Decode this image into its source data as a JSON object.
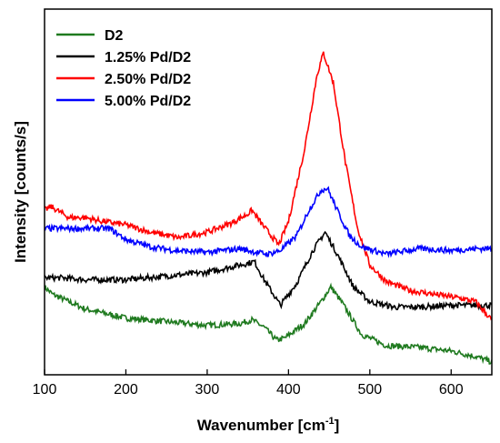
{
  "chart_data": {
    "type": "line",
    "xlabel": "Wavenumber [cm",
    "xlabel_sup": "-1",
    "xlabel_suffix": "]",
    "ylabel": "Intensity [counts/s]",
    "xlim": [
      100,
      650
    ],
    "ylim": [
      0,
      100
    ],
    "x_ticks": [
      100,
      200,
      300,
      400,
      500,
      600
    ],
    "x_tick_labels": [
      "100",
      "200",
      "300",
      "400",
      "500",
      "600"
    ],
    "y_tick_labels_shown": false,
    "legend_position": "top-left",
    "series": [
      {
        "name": "D2",
        "color": "#1f7a1f",
        "points": [
          [
            100,
            24
          ],
          [
            110,
            22
          ],
          [
            130,
            20
          ],
          [
            150,
            18
          ],
          [
            170,
            17
          ],
          [
            200,
            15.5
          ],
          [
            250,
            14.5
          ],
          [
            300,
            13.5
          ],
          [
            340,
            14
          ],
          [
            355,
            15
          ],
          [
            370,
            13
          ],
          [
            385,
            9.5
          ],
          [
            395,
            10
          ],
          [
            420,
            14
          ],
          [
            440,
            20
          ],
          [
            452,
            24
          ],
          [
            465,
            20
          ],
          [
            490,
            11
          ],
          [
            520,
            8
          ],
          [
            560,
            7.5
          ],
          [
            600,
            6.5
          ],
          [
            630,
            5
          ],
          [
            650,
            3.5
          ]
        ]
      },
      {
        "name": "1.25% Pd/D2",
        "color": "#000000",
        "points": [
          [
            100,
            26.5
          ],
          [
            120,
            26.5
          ],
          [
            150,
            26
          ],
          [
            200,
            26
          ],
          [
            250,
            27
          ],
          [
            300,
            28
          ],
          [
            330,
            29.5
          ],
          [
            350,
            30.5
          ],
          [
            358,
            31
          ],
          [
            370,
            26
          ],
          [
            390,
            19
          ],
          [
            410,
            25
          ],
          [
            430,
            34
          ],
          [
            445,
            39
          ],
          [
            460,
            33
          ],
          [
            480,
            24
          ],
          [
            500,
            20
          ],
          [
            530,
            18.5
          ],
          [
            560,
            18.5
          ],
          [
            600,
            19
          ],
          [
            630,
            19
          ],
          [
            650,
            19
          ]
        ]
      },
      {
        "name": "2.50% Pd/D2",
        "color": "#ff0000",
        "points": [
          [
            100,
            45
          ],
          [
            108,
            46
          ],
          [
            130,
            43
          ],
          [
            150,
            43
          ],
          [
            170,
            42
          ],
          [
            200,
            41
          ],
          [
            230,
            39
          ],
          [
            265,
            37.5
          ],
          [
            300,
            39
          ],
          [
            330,
            41.5
          ],
          [
            350,
            44
          ],
          [
            355,
            45
          ],
          [
            368,
            41
          ],
          [
            388,
            35.5
          ],
          [
            400,
            42
          ],
          [
            420,
            62
          ],
          [
            435,
            82
          ],
          [
            443,
            88
          ],
          [
            455,
            80
          ],
          [
            470,
            58
          ],
          [
            485,
            40
          ],
          [
            500,
            30
          ],
          [
            520,
            25.5
          ],
          [
            550,
            23
          ],
          [
            580,
            22
          ],
          [
            610,
            21
          ],
          [
            630,
            20
          ],
          [
            650,
            15
          ]
        ]
      },
      {
        "name": "5.00% Pd/D2",
        "color": "#0000ff",
        "points": [
          [
            100,
            40
          ],
          [
            120,
            40
          ],
          [
            150,
            40
          ],
          [
            180,
            40
          ],
          [
            200,
            37
          ],
          [
            230,
            35
          ],
          [
            260,
            34
          ],
          [
            300,
            33.5
          ],
          [
            340,
            34.5
          ],
          [
            360,
            33.5
          ],
          [
            375,
            33
          ],
          [
            390,
            34
          ],
          [
            410,
            38
          ],
          [
            425,
            45
          ],
          [
            440,
            50.5
          ],
          [
            448,
            51
          ],
          [
            460,
            45
          ],
          [
            475,
            38
          ],
          [
            490,
            35
          ],
          [
            520,
            33
          ],
          [
            560,
            34.5
          ],
          [
            600,
            34
          ],
          [
            630,
            34.5
          ],
          [
            650,
            34.5
          ]
        ]
      }
    ]
  }
}
